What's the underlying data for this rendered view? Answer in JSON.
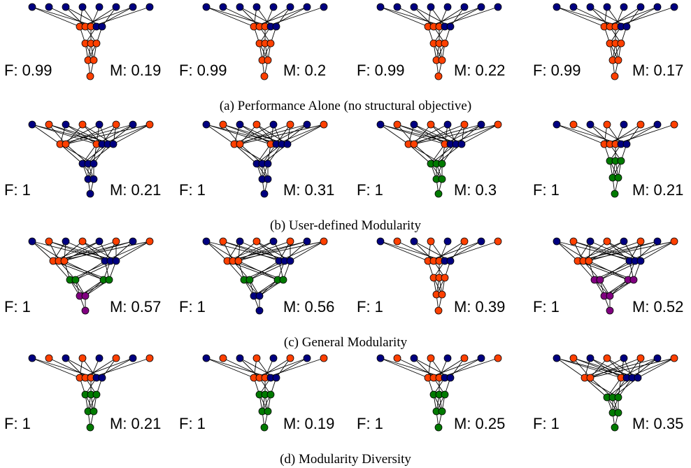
{
  "colors": {
    "blue": "#000080",
    "orange": "#ff4000",
    "green": "#007a00",
    "purple": "#800080"
  },
  "rows": [
    {
      "caption": "(a) Performance Alone (no structural objective)",
      "panels": [
        {
          "f": "F: 0.99",
          "m": "M: 0.19",
          "style": "dense",
          "mix": [
            "blue",
            "orange",
            "orange"
          ]
        },
        {
          "f": "F: 0.99",
          "m": "M: 0.2",
          "style": "dense",
          "mix": [
            "blue",
            "orange",
            "orange"
          ]
        },
        {
          "f": "F: 0.99",
          "m": "M: 0.22",
          "style": "dense",
          "mix": [
            "blue",
            "orange",
            "orange"
          ]
        },
        {
          "f": "F: 0.99",
          "m": "M: 0.17",
          "style": "dense",
          "mix": [
            "blue",
            "orange",
            "orange"
          ]
        }
      ]
    },
    {
      "caption": "(b) User-defined Modularity",
      "panels": [
        {
          "f": "F: 1",
          "m": "M: 0.21",
          "style": "split",
          "mix": [
            "blue",
            "orange",
            "blue"
          ]
        },
        {
          "f": "F: 1",
          "m": "M: 0.31",
          "style": "split",
          "mix": [
            "blue",
            "orange",
            "blue"
          ]
        },
        {
          "f": "F: 1",
          "m": "M: 0.3",
          "style": "split",
          "mix": [
            "blue",
            "orange",
            "green"
          ]
        },
        {
          "f": "F: 1",
          "m": "M: 0.21",
          "style": "dense",
          "mix": [
            "blue",
            "orange",
            "green"
          ]
        }
      ]
    },
    {
      "caption": "(c) General Modularity",
      "panels": [
        {
          "f": "F: 1",
          "m": "M: 0.57",
          "style": "split3",
          "mix": [
            "blue",
            "orange",
            "green",
            "purple"
          ]
        },
        {
          "f": "F: 1",
          "m": "M: 0.56",
          "style": "split3",
          "mix": [
            "blue",
            "orange",
            "green",
            "blue"
          ]
        },
        {
          "f": "F: 1",
          "m": "M: 0.39",
          "style": "dense",
          "mix": [
            "blue",
            "orange",
            "orange"
          ]
        },
        {
          "f": "F: 1",
          "m": "M: 0.52",
          "style": "split3",
          "mix": [
            "blue",
            "orange",
            "purple",
            "purple"
          ]
        }
      ]
    },
    {
      "caption": "(d) Modularity Diversity",
      "panels": [
        {
          "f": "F: 1",
          "m": "M: 0.21",
          "style": "dense",
          "mix": [
            "blue",
            "orange",
            "green"
          ]
        },
        {
          "f": "F: 1",
          "m": "M: 0.19",
          "style": "dense",
          "mix": [
            "blue",
            "orange",
            "green"
          ]
        },
        {
          "f": "F: 1",
          "m": "M: 0.25",
          "style": "dense",
          "mix": [
            "blue",
            "orange",
            "green"
          ]
        },
        {
          "f": "F: 1",
          "m": "M: 0.35",
          "style": "split",
          "mix": [
            "blue",
            "orange",
            "green"
          ]
        }
      ]
    }
  ]
}
